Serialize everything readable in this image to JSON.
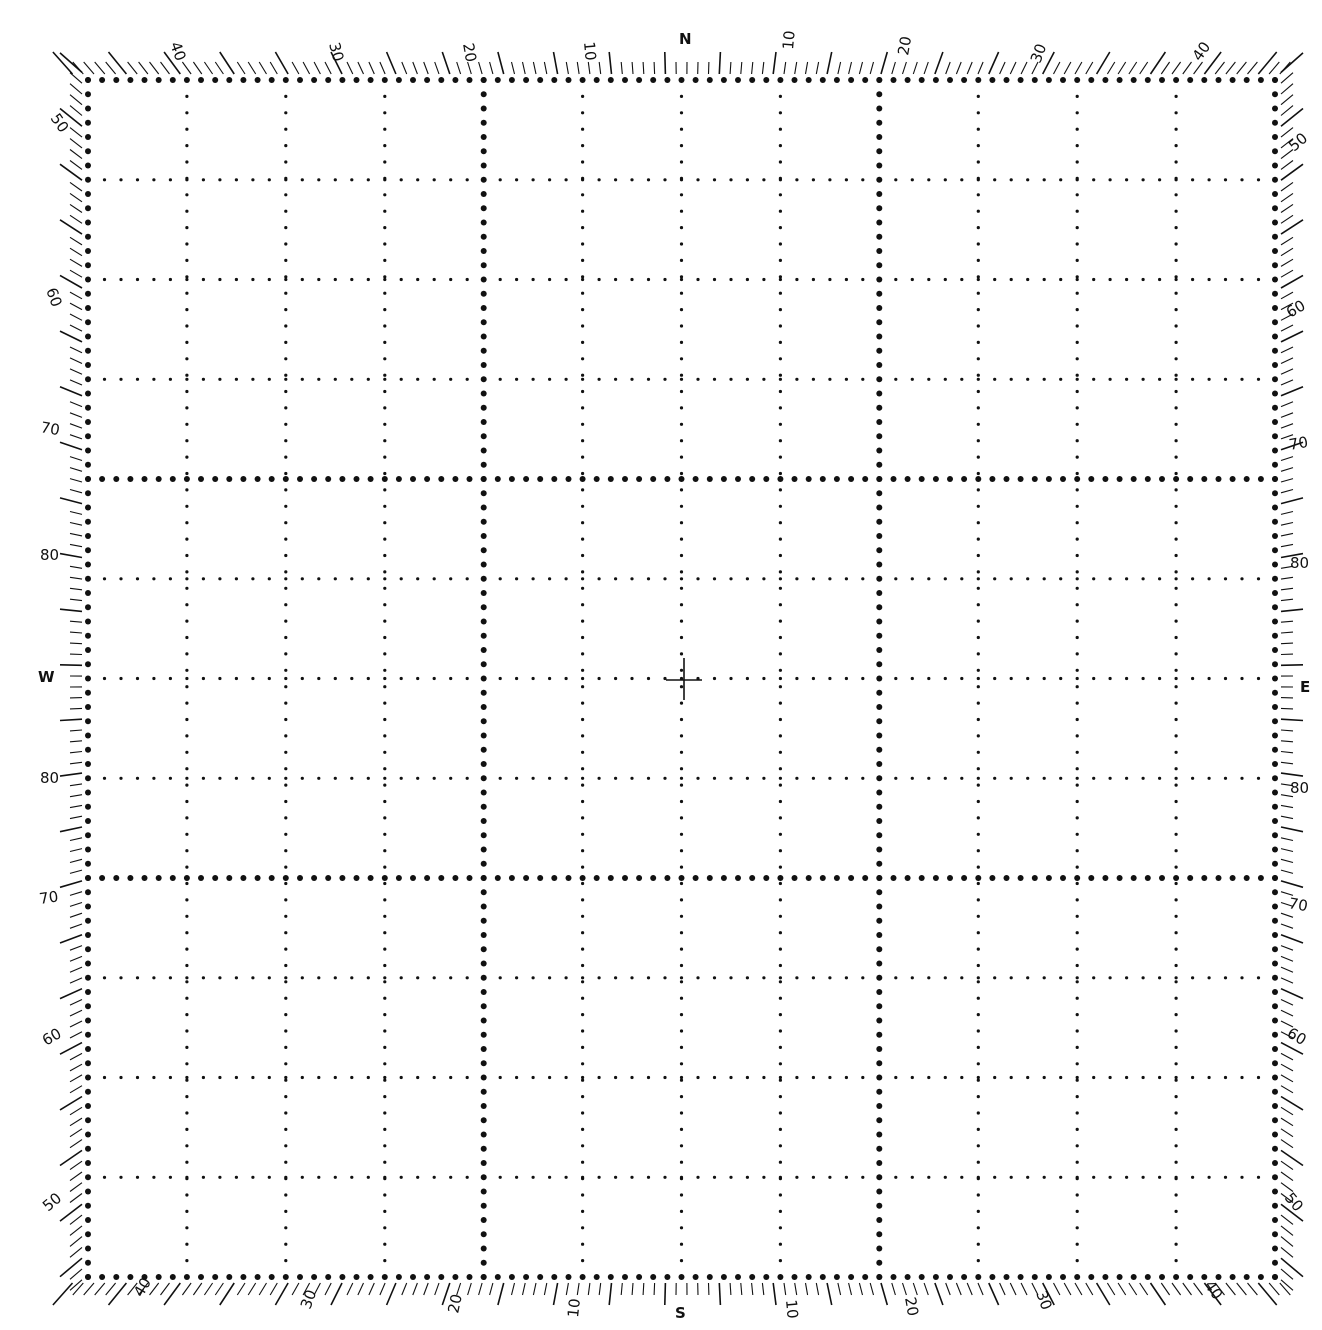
{
  "compass": {
    "north": "N",
    "south": "S",
    "east": "E",
    "west": "W"
  },
  "top_labels": [
    "40",
    "30",
    "20",
    "10",
    "N",
    "10",
    "20",
    "30",
    "40"
  ],
  "bottom_labels": [
    "40",
    "30",
    "20",
    "10",
    "S",
    "10",
    "20",
    "30",
    "40"
  ],
  "left_labels": [
    "50",
    "60",
    "70",
    "80",
    "W",
    "80",
    "70",
    "60",
    "50"
  ],
  "right_labels": [
    "50",
    "60",
    "70",
    "80",
    "E",
    "80",
    "70",
    "60",
    "50"
  ],
  "grid": {
    "cells_per_side": 12,
    "heavy_every": 4
  },
  "colors": {
    "ink": "#111111",
    "paper": "#ffffff"
  }
}
